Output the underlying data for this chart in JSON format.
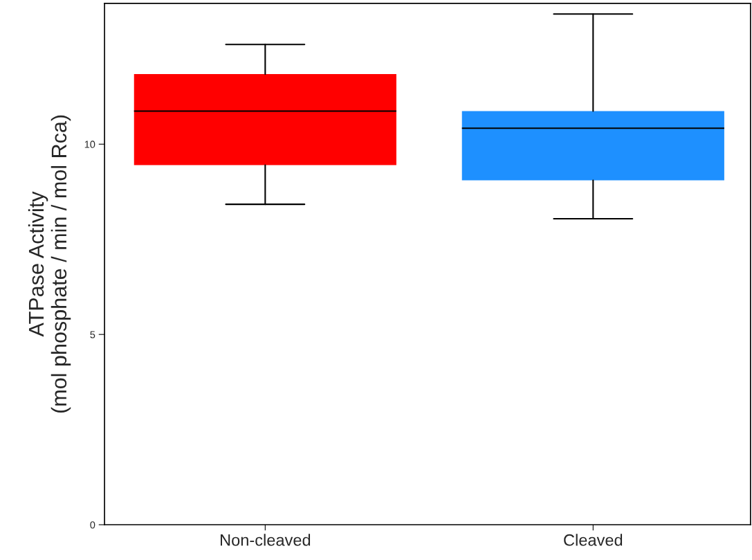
{
  "chart_data": {
    "type": "box",
    "ylabel": "ATPase Activity\n(mol phosphate / min / mol Rca)",
    "categories": [
      "Non-cleaved",
      "Cleaved"
    ],
    "colors": [
      "#ff0000",
      "#1e90ff"
    ],
    "boxes": [
      {
        "low": 8.42,
        "q1": 9.45,
        "median": 10.87,
        "q3": 11.84,
        "high": 12.62
      },
      {
        "low": 8.04,
        "q1": 9.05,
        "median": 10.42,
        "q3": 10.87,
        "high": 13.42
      }
    ],
    "ylim": [
      0,
      13.7
    ],
    "yticks": [
      0,
      5,
      10
    ],
    "grid": false
  }
}
